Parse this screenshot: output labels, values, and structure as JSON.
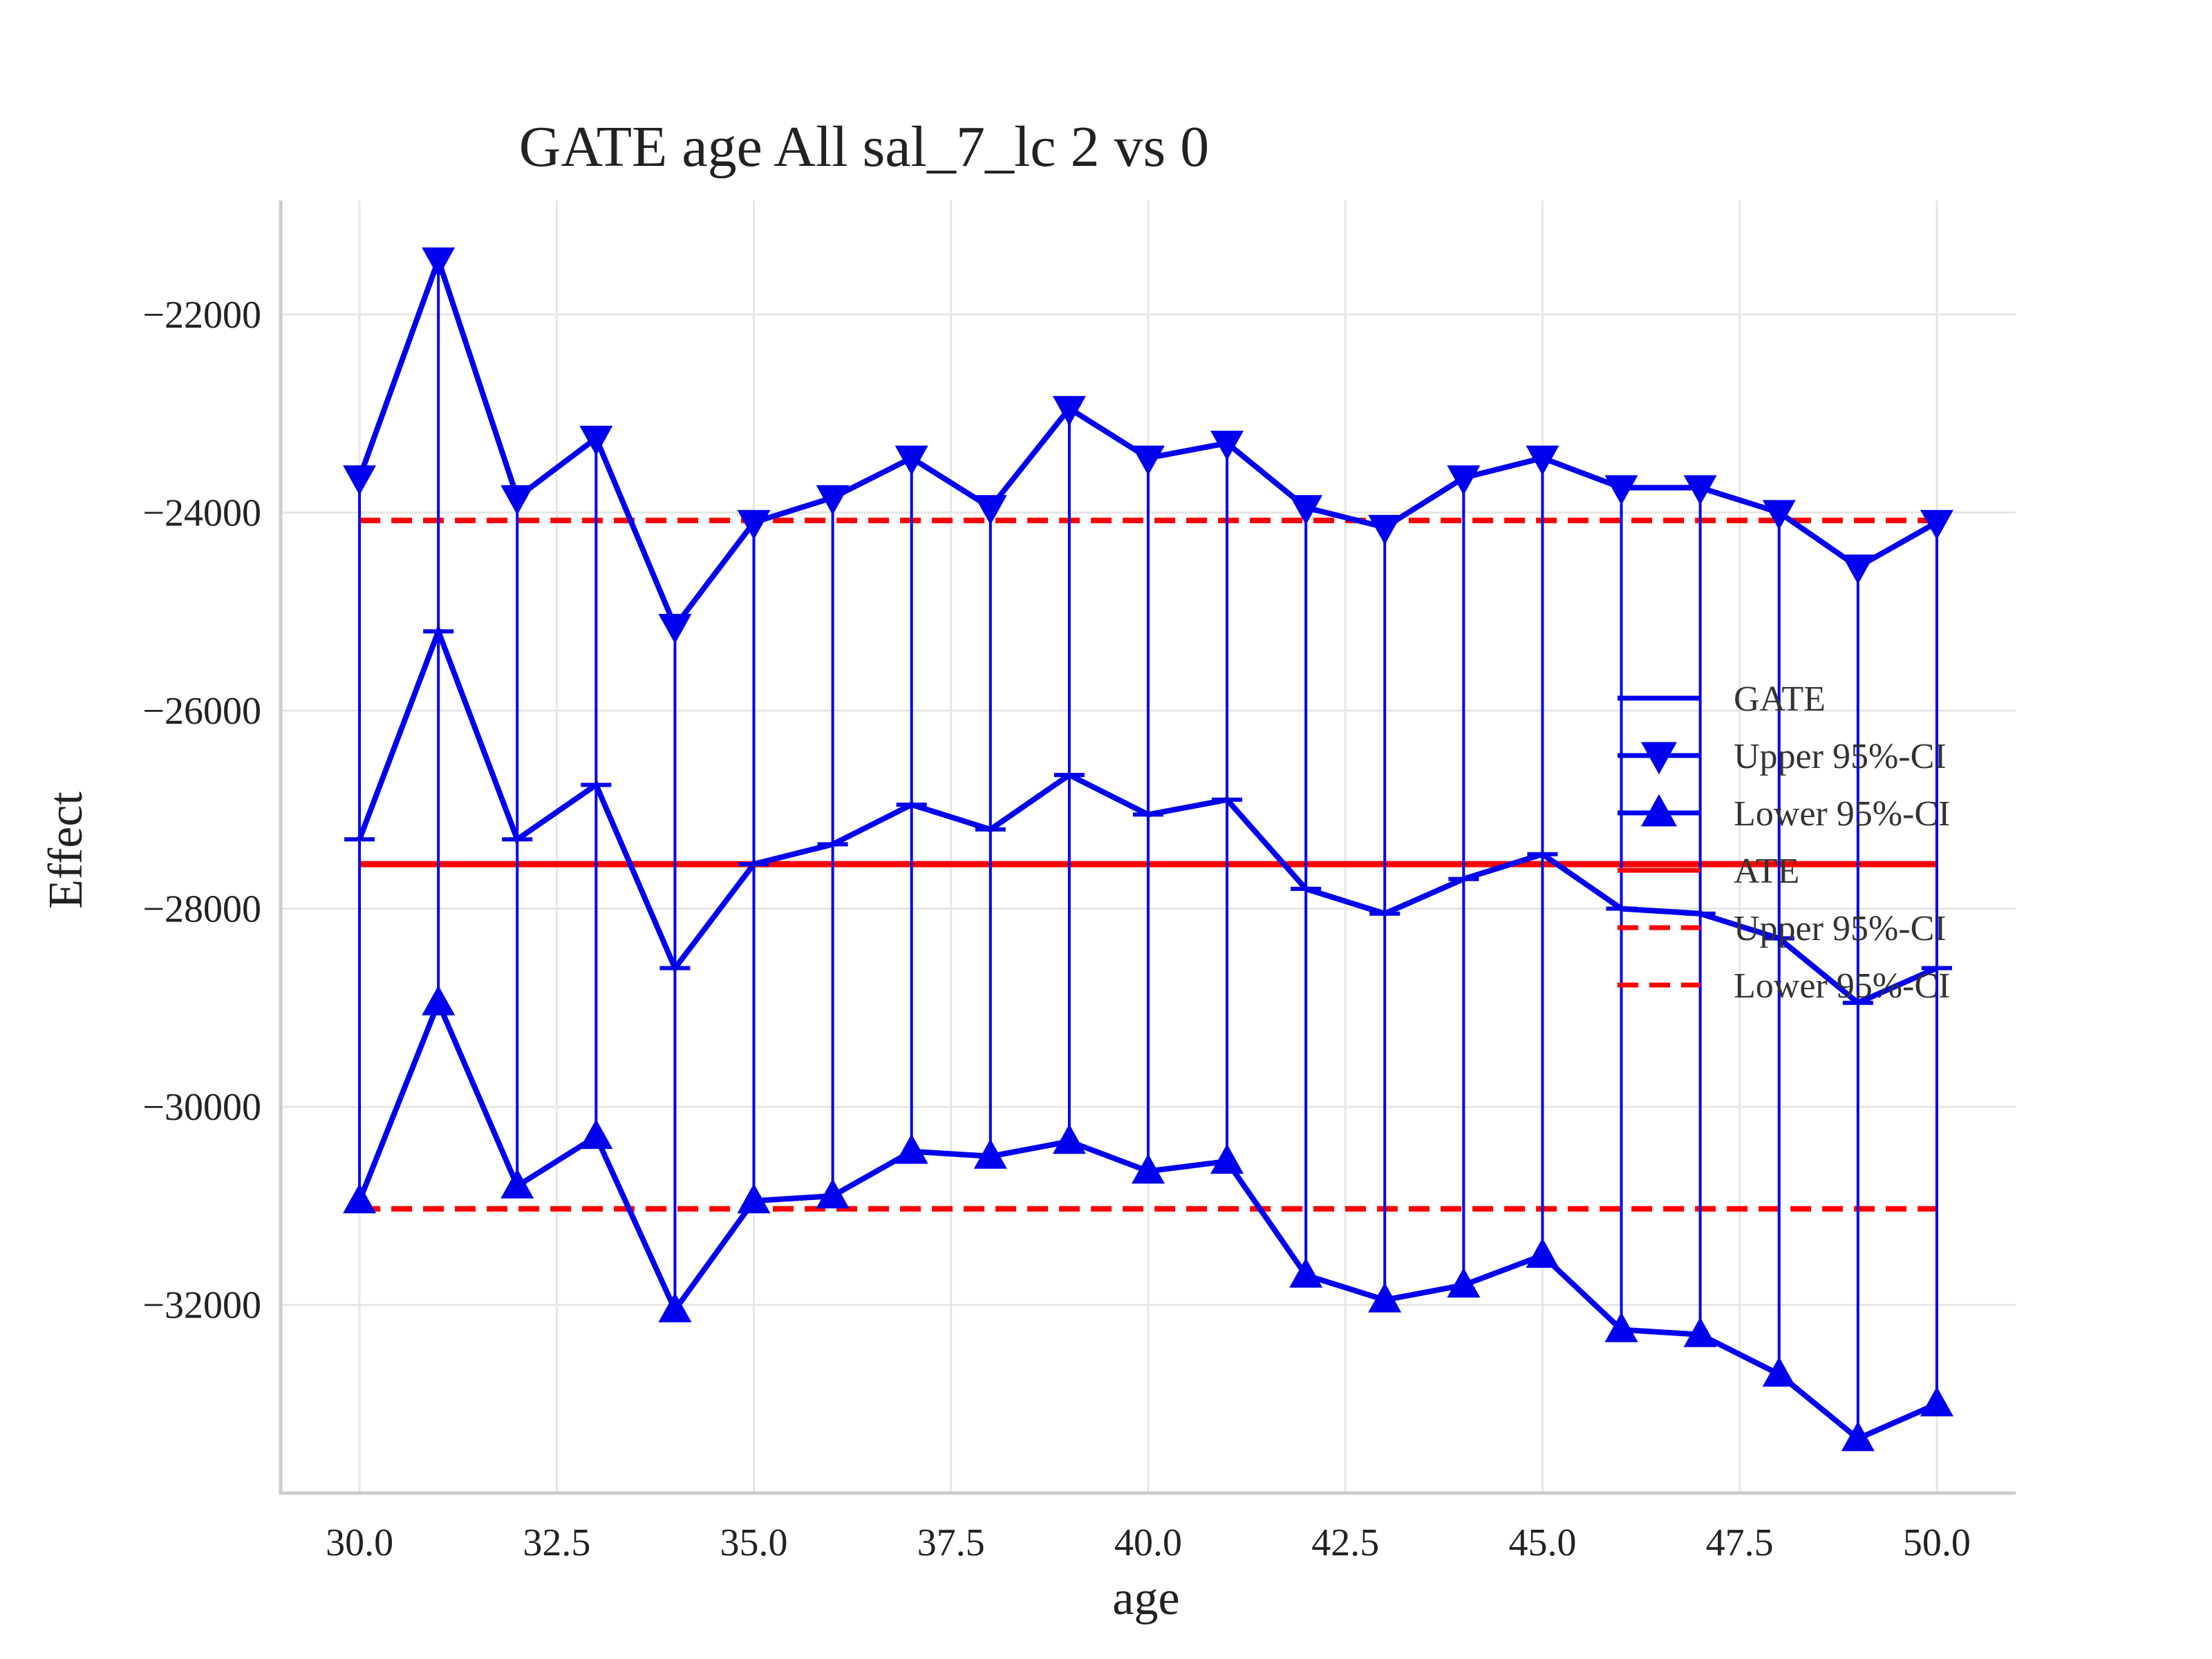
{
  "chart_data": {
    "type": "line",
    "title": "GATE age All sal_7_lc  2 vs 0",
    "xlabel": "age",
    "ylabel": "Effect",
    "xlim": [
      29.0,
      51.0
    ],
    "ylim": [
      -33900,
      -20850
    ],
    "xticks": [
      30.0,
      32.5,
      35.0,
      37.5,
      40.0,
      42.5,
      45.0,
      47.5,
      50.0
    ],
    "xtick_labels": [
      "30.0",
      "32.5",
      "35.0",
      "37.5",
      "40.0",
      "42.5",
      "45.0",
      "47.5",
      "50.0"
    ],
    "yticks": [
      -22000,
      -24000,
      -26000,
      -28000,
      -30000,
      -32000
    ],
    "ytick_labels": [
      "−22000",
      "−24000",
      "−26000",
      "−28000",
      "−30000",
      "−32000"
    ],
    "grid": true,
    "legend_position": "right",
    "x": [
      30,
      31,
      32,
      33,
      34,
      35,
      36,
      37,
      38,
      39,
      40,
      41,
      42,
      43,
      44,
      45,
      46,
      47,
      48,
      49,
      50
    ],
    "series": [
      {
        "name": "GATE",
        "color": "#0000ee",
        "style": "solid",
        "marker": "errorbar-cap",
        "values": [
          -27300,
          -25200,
          -27300,
          -26750,
          -28600,
          -27550,
          -27350,
          -26950,
          -27200,
          -26650,
          -27050,
          -26900,
          -27800,
          -28050,
          -27700,
          -27450,
          -28000,
          -28050,
          -28300,
          -28950,
          -28600
        ]
      },
      {
        "name": "Upper 95%-CI",
        "color": "#0000ee",
        "style": "solid",
        "marker": "triangle-down",
        "values": [
          -23650,
          -21450,
          -23850,
          -23250,
          -25150,
          -24100,
          -23850,
          -23450,
          -23950,
          -22950,
          -23450,
          -23300,
          -23950,
          -24150,
          -23650,
          -23450,
          -23750,
          -23750,
          -24000,
          -24550,
          -24100
        ]
      },
      {
        "name": "Lower 95%-CI",
        "color": "#0000ee",
        "style": "solid",
        "marker": "triangle-up",
        "values": [
          -30950,
          -28950,
          -30800,
          -30300,
          -32050,
          -30950,
          -30900,
          -30450,
          -30500,
          -30350,
          -30650,
          -30550,
          -31700,
          -31950,
          -31800,
          -31500,
          -32250,
          -32300,
          -32700,
          -33350,
          -33000
        ]
      },
      {
        "name": "ATE",
        "color": "#ff0000",
        "style": "solid",
        "constant": -27550
      },
      {
        "name": "Upper 95%-CI",
        "color": "#ff0000",
        "style": "dashed",
        "constant": -24080
      },
      {
        "name": "Lower 95%-CI",
        "color": "#ff0000",
        "style": "dashed",
        "constant": -31030
      }
    ]
  }
}
